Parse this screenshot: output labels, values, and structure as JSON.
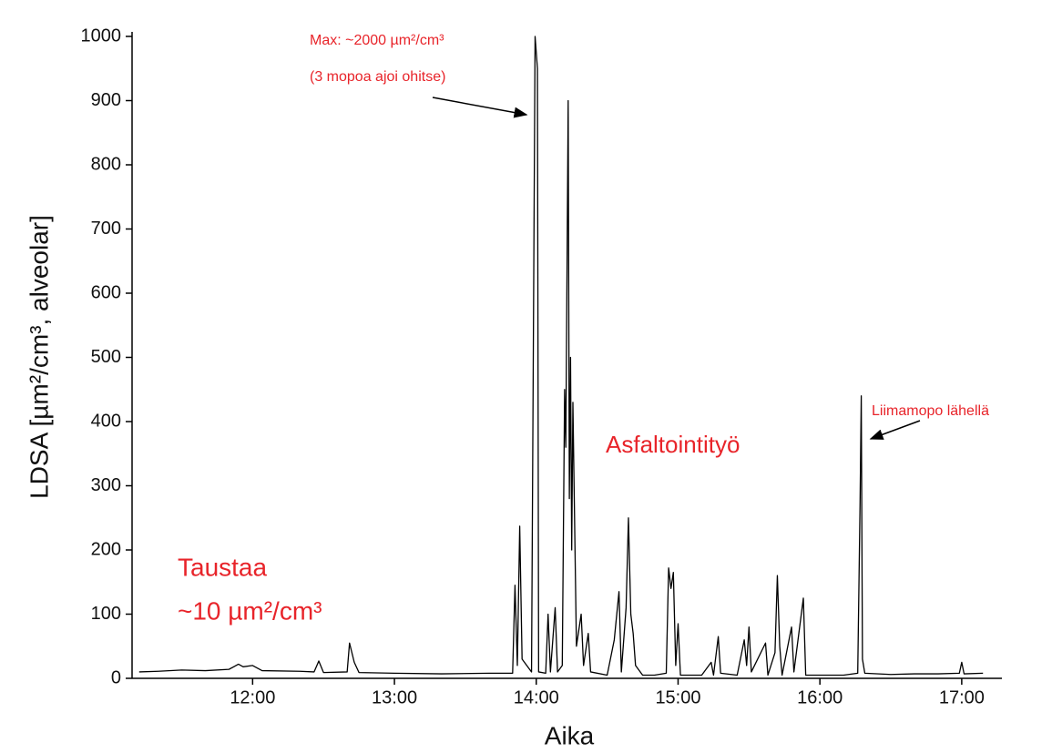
{
  "chart_data": {
    "type": "line",
    "xlabel": "Aika",
    "ylabel": "LDSA [µm²/cm³, alveolar]",
    "color": "#000000",
    "xlim": [
      669,
      1037
    ],
    "ylim": [
      0,
      1000
    ],
    "xticks": [
      {
        "value": 720,
        "label": "12:00"
      },
      {
        "value": 780,
        "label": "13:00"
      },
      {
        "value": 840,
        "label": "14:00"
      },
      {
        "value": 900,
        "label": "15:00"
      },
      {
        "value": 960,
        "label": "16:00"
      },
      {
        "value": 1020,
        "label": "17:00"
      }
    ],
    "yticks": [
      0,
      100,
      200,
      300,
      400,
      500,
      600,
      700,
      800,
      900,
      1000
    ],
    "annotations": [
      "Max: ~2000 µm²/cm³",
      "(3 mopoa ajoi ohitse)",
      "Asfaltointityö",
      "Taustaa",
      "~10 µm²/cm³",
      "Liimamopo lähellä"
    ],
    "annotation_color": "#e8242a",
    "x": [
      672,
      680,
      690,
      700,
      710,
      714,
      716,
      720,
      724,
      740,
      746,
      748,
      750,
      760,
      761,
      763,
      765,
      780,
      800,
      820,
      830,
      831,
      832,
      833,
      834,
      838,
      839.5,
      840.5,
      841,
      844,
      845,
      846,
      848,
      849,
      851,
      852,
      852.5,
      853.5,
      854,
      854.5,
      855,
      855.5,
      856,
      857,
      859,
      860,
      862,
      863,
      870,
      873,
      875,
      876,
      878,
      879,
      880,
      881,
      882,
      885,
      890,
      895,
      896,
      897,
      898,
      899,
      900,
      901,
      910,
      914,
      915,
      917,
      918,
      925,
      928,
      929,
      930,
      931,
      937,
      938,
      941,
      942,
      943,
      944,
      948,
      949,
      953,
      954,
      960,
      970,
      976,
      977,
      977.5,
      978,
      979,
      990,
      1000,
      1010,
      1019,
      1020,
      1021,
      1029
    ],
    "values": [
      10,
      11,
      13,
      12,
      14,
      22,
      18,
      20,
      12,
      11,
      10,
      27,
      9,
      10,
      55,
      25,
      9,
      8,
      7,
      8,
      8,
      145,
      20,
      237,
      30,
      10,
      1000,
      950,
      10,
      8,
      100,
      10,
      110,
      10,
      20,
      450,
      360,
      900,
      280,
      500,
      200,
      430,
      300,
      50,
      100,
      20,
      70,
      10,
      5,
      60,
      135,
      10,
      110,
      250,
      100,
      70,
      20,
      5,
      5,
      8,
      172,
      140,
      165,
      20,
      85,
      5,
      5,
      25,
      5,
      65,
      8,
      5,
      60,
      20,
      80,
      10,
      55,
      5,
      40,
      160,
      50,
      5,
      80,
      10,
      125,
      5,
      5,
      5,
      8,
      275,
      440,
      30,
      8,
      6,
      7,
      7,
      8,
      25,
      7,
      8
    ]
  }
}
